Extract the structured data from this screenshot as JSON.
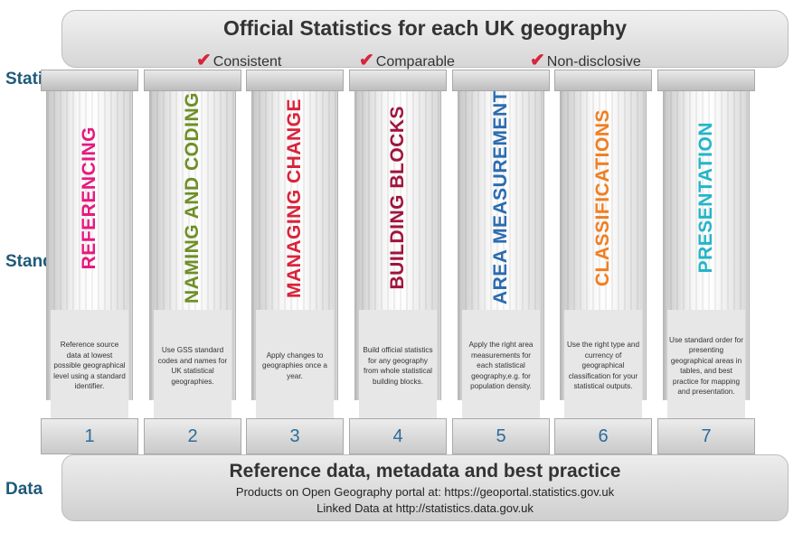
{
  "roof": {
    "title": "Official Statistics for each UK geography",
    "checks": [
      "Consistent",
      "Comparable",
      "Non-disclosive"
    ],
    "check_symbol": "✔"
  },
  "row_labels": {
    "statistics": "Statistics",
    "standards": "Standards",
    "data": "Data"
  },
  "pillars": [
    {
      "number": "1",
      "title": "REFERENCING",
      "color": "#e6197e",
      "description": "Reference source data at lowest possible geographical level using a standard identifier."
    },
    {
      "number": "2",
      "title": "NAMING AND CODING",
      "color": "#6f8f26",
      "description": "Use GSS standard codes and names for UK statistical geographies."
    },
    {
      "number": "3",
      "title": "MANAGING CHANGE",
      "color": "#d8243b",
      "description": "Apply changes to geographies once a year."
    },
    {
      "number": "4",
      "title": "BUILDING BLOCKS",
      "color": "#a0143c",
      "description": "Build official statistics for any geography from whole statistical building blocks."
    },
    {
      "number": "5",
      "title": "AREA MEASUREMENT",
      "color": "#2b6cb0",
      "description": "Apply the right area measurements for each statistical geography,e.g. for population density."
    },
    {
      "number": "6",
      "title": "CLASSIFICATIONS",
      "color": "#f07f22",
      "description": "Use the right type and currency of geographical classification for your statistical outputs."
    },
    {
      "number": "7",
      "title": "PRESENTATION",
      "color": "#23b5c8",
      "description": "Use standard order for presenting geographical areas in tables, and best practice for mapping and presentation."
    }
  ],
  "foundation": {
    "title": "Reference data, metadata and best practice",
    "line1": "Products on Open Geography portal at: https://geoportal.statistics.gov.uk",
    "line2": "Linked Data at http://statistics.data.gov.uk"
  }
}
